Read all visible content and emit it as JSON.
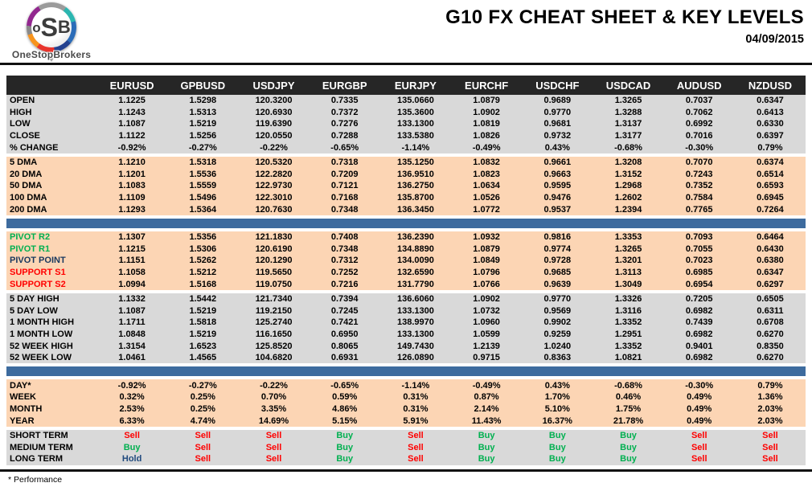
{
  "logo": {
    "monogram_o": "o",
    "monogram_s": "S",
    "monogram_b": "B",
    "brand": "OneStopBrokers"
  },
  "header": {
    "title": "G10 FX CHEAT SHEET & KEY LEVELS",
    "date": "04/09/2015"
  },
  "footnote": "* Performance",
  "colors": {
    "header_bg": "#262626",
    "section_gray": "#d9d9d9",
    "section_peach": "#fcd5b4",
    "divider_blue": "#3d6b9e",
    "green": "#00b050",
    "red": "#ff0000",
    "navy": "#17375e",
    "hold": "#1f497d"
  },
  "table": {
    "columns": [
      "EURUSD",
      "GPBUSD",
      "USDJPY",
      "EURGBP",
      "EURJPY",
      "EURCHF",
      "USDCHF",
      "USDCAD",
      "AUDUSD",
      "NZDUSD"
    ],
    "sections": [
      {
        "name": "ohlc",
        "theme": "gray",
        "divider_after": false,
        "rows": [
          {
            "label": "OPEN",
            "values": [
              "1.1225",
              "1.5298",
              "120.3200",
              "0.7335",
              "135.0660",
              "1.0879",
              "0.9689",
              "1.3265",
              "0.7037",
              "0.6347"
            ]
          },
          {
            "label": "HIGH",
            "values": [
              "1.1243",
              "1.5313",
              "120.6930",
              "0.7372",
              "135.3600",
              "1.0902",
              "0.9770",
              "1.3288",
              "0.7062",
              "0.6413"
            ]
          },
          {
            "label": "LOW",
            "values": [
              "1.1087",
              "1.5219",
              "119.6390",
              "0.7276",
              "133.1300",
              "1.0819",
              "0.9681",
              "1.3137",
              "0.6992",
              "0.6330"
            ]
          },
          {
            "label": "CLOSE",
            "values": [
              "1.1122",
              "1.5256",
              "120.0550",
              "0.7288",
              "133.5380",
              "1.0826",
              "0.9732",
              "1.3177",
              "0.7016",
              "0.6397"
            ]
          },
          {
            "label": "% CHANGE",
            "values": [
              "-0.92%",
              "-0.27%",
              "-0.22%",
              "-0.65%",
              "-1.14%",
              "-0.49%",
              "0.43%",
              "-0.68%",
              "-0.30%",
              "0.79%"
            ]
          }
        ]
      },
      {
        "name": "moving-averages",
        "theme": "peach",
        "divider_after": true,
        "rows": [
          {
            "label": "5 DMA",
            "values": [
              "1.1210",
              "1.5318",
              "120.5320",
              "0.7318",
              "135.1250",
              "1.0832",
              "0.9661",
              "1.3208",
              "0.7070",
              "0.6374"
            ]
          },
          {
            "label": "20 DMA",
            "values": [
              "1.1201",
              "1.5536",
              "122.2820",
              "0.7209",
              "136.9510",
              "1.0823",
              "0.9663",
              "1.3152",
              "0.7243",
              "0.6514"
            ]
          },
          {
            "label": "50 DMA",
            "values": [
              "1.1083",
              "1.5559",
              "122.9730",
              "0.7121",
              "136.2750",
              "1.0634",
              "0.9595",
              "1.2968",
              "0.7352",
              "0.6593"
            ]
          },
          {
            "label": "100 DMA",
            "values": [
              "1.1109",
              "1.5496",
              "122.3010",
              "0.7168",
              "135.8700",
              "1.0526",
              "0.9476",
              "1.2602",
              "0.7584",
              "0.6945"
            ]
          },
          {
            "label": "200 DMA",
            "values": [
              "1.1293",
              "1.5364",
              "120.7630",
              "0.7348",
              "136.3450",
              "1.0772",
              "0.9537",
              "1.2394",
              "0.7765",
              "0.7264"
            ]
          }
        ]
      },
      {
        "name": "pivots",
        "theme": "peach",
        "divider_after": false,
        "rows": [
          {
            "label": "PIVOT R2",
            "label_color": "green",
            "values": [
              "1.1307",
              "1.5356",
              "121.1830",
              "0.7408",
              "136.2390",
              "1.0932",
              "0.9816",
              "1.3353",
              "0.7093",
              "0.6464"
            ]
          },
          {
            "label": "PIVOT R1",
            "label_color": "green",
            "values": [
              "1.1215",
              "1.5306",
              "120.6190",
              "0.7348",
              "134.8890",
              "1.0879",
              "0.9774",
              "1.3265",
              "0.7055",
              "0.6430"
            ]
          },
          {
            "label": "PIVOT POINT",
            "label_color": "navy",
            "values": [
              "1.1151",
              "1.5262",
              "120.1290",
              "0.7312",
              "134.0090",
              "1.0849",
              "0.9728",
              "1.3201",
              "0.7023",
              "0.6380"
            ]
          },
          {
            "label": "SUPPORT S1",
            "label_color": "red",
            "values": [
              "1.1058",
              "1.5212",
              "119.5650",
              "0.7252",
              "132.6590",
              "1.0796",
              "0.9685",
              "1.3113",
              "0.6985",
              "0.6347"
            ]
          },
          {
            "label": "SUPPORT S2",
            "label_color": "red",
            "values": [
              "1.0994",
              "1.5168",
              "119.0750",
              "0.7216",
              "131.7790",
              "1.0766",
              "0.9639",
              "1.3049",
              "0.6954",
              "0.6297"
            ]
          }
        ]
      },
      {
        "name": "ranges",
        "theme": "gray",
        "divider_after": true,
        "rows": [
          {
            "label": "5 DAY HIGH",
            "values": [
              "1.1332",
              "1.5442",
              "121.7340",
              "0.7394",
              "136.6060",
              "1.0902",
              "0.9770",
              "1.3326",
              "0.7205",
              "0.6505"
            ]
          },
          {
            "label": "5 DAY LOW",
            "values": [
              "1.1087",
              "1.5219",
              "119.2150",
              "0.7245",
              "133.1300",
              "1.0732",
              "0.9569",
              "1.3116",
              "0.6982",
              "0.6311"
            ]
          },
          {
            "label": "1 MONTH HIGH",
            "values": [
              "1.1711",
              "1.5818",
              "125.2740",
              "0.7421",
              "138.9970",
              "1.0960",
              "0.9902",
              "1.3352",
              "0.7439",
              "0.6708"
            ]
          },
          {
            "label": "1 MONTH LOW",
            "values": [
              "1.0848",
              "1.5219",
              "116.1650",
              "0.6950",
              "133.1300",
              "1.0599",
              "0.9259",
              "1.2951",
              "0.6982",
              "0.6270"
            ]
          },
          {
            "label": "52 WEEK HIGH",
            "values": [
              "1.3154",
              "1.6523",
              "125.8520",
              "0.8065",
              "149.7430",
              "1.2139",
              "1.0240",
              "1.3352",
              "0.9401",
              "0.8350"
            ]
          },
          {
            "label": "52 WEEK LOW",
            "values": [
              "1.0461",
              "1.4565",
              "104.6820",
              "0.6931",
              "126.0890",
              "0.9715",
              "0.8363",
              "1.0821",
              "0.6982",
              "0.6270"
            ]
          }
        ]
      },
      {
        "name": "performance",
        "theme": "peach",
        "divider_after": false,
        "rows": [
          {
            "label": "DAY*",
            "values": [
              "-0.92%",
              "-0.27%",
              "-0.22%",
              "-0.65%",
              "-1.14%",
              "-0.49%",
              "0.43%",
              "-0.68%",
              "-0.30%",
              "0.79%"
            ]
          },
          {
            "label": "WEEK",
            "values": [
              "0.32%",
              "0.25%",
              "0.70%",
              "0.59%",
              "0.31%",
              "0.87%",
              "1.70%",
              "0.46%",
              "0.49%",
              "1.36%"
            ]
          },
          {
            "label": "MONTH",
            "values": [
              "2.53%",
              "0.25%",
              "3.35%",
              "4.86%",
              "0.31%",
              "2.14%",
              "5.10%",
              "1.75%",
              "0.49%",
              "2.03%"
            ]
          },
          {
            "label": "YEAR",
            "values": [
              "6.33%",
              "4.74%",
              "14.69%",
              "5.15%",
              "5.91%",
              "11.43%",
              "16.37%",
              "21.78%",
              "0.49%",
              "2.03%"
            ]
          }
        ]
      },
      {
        "name": "signals",
        "theme": "gray",
        "signal": true,
        "divider_after": false,
        "rows": [
          {
            "label": "SHORT TERM",
            "values": [
              "Sell",
              "Sell",
              "Sell",
              "Buy",
              "Sell",
              "Buy",
              "Buy",
              "Buy",
              "Sell",
              "Sell"
            ]
          },
          {
            "label": "MEDIUM TERM",
            "values": [
              "Buy",
              "Sell",
              "Sell",
              "Buy",
              "Sell",
              "Buy",
              "Buy",
              "Buy",
              "Sell",
              "Sell"
            ]
          },
          {
            "label": "LONG TERM",
            "values": [
              "Hold",
              "Sell",
              "Sell",
              "Buy",
              "Sell",
              "Buy",
              "Buy",
              "Buy",
              "Sell",
              "Sell"
            ]
          }
        ]
      }
    ]
  }
}
